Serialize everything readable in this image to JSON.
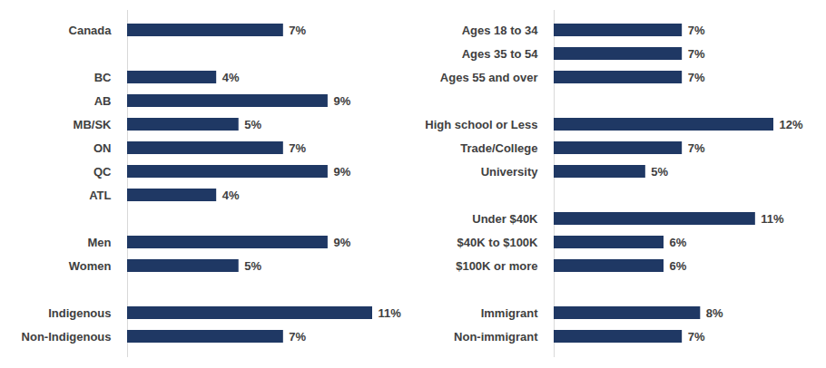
{
  "chart_data": [
    {
      "type": "bar",
      "orientation": "horizontal",
      "data_labels": true,
      "tick_labels": "y",
      "color": "#1f3864",
      "categories": [
        "Canada",
        null,
        "BC",
        "AB",
        "MB/SK",
        "ON",
        "QC",
        "ATL",
        null,
        "Men",
        "Women",
        null,
        "Indigenous",
        "Non-Indigenous"
      ],
      "values": [
        7,
        null,
        4,
        9,
        5,
        7,
        9,
        4,
        null,
        9,
        5,
        null,
        11,
        7
      ],
      "value_labels": [
        "7%",
        null,
        "4%",
        "9%",
        "5%",
        "7%",
        "9%",
        "4%",
        null,
        "9%",
        "5%",
        null,
        "11%",
        "7%"
      ]
    },
    {
      "type": "bar",
      "orientation": "horizontal",
      "data_labels": true,
      "tick_labels": "y",
      "color": "#1f3864",
      "categories": [
        "Ages 18 to 34",
        "Ages 35 to 54",
        "Ages 55 and over",
        null,
        "High school or Less",
        "Trade/College",
        "University",
        null,
        "Under $40K",
        "$40K to $100K",
        "$100K or more",
        null,
        "Immigrant",
        "Non-immigrant"
      ],
      "values": [
        7,
        7,
        7,
        null,
        12,
        7,
        5,
        null,
        11,
        6,
        6,
        null,
        8,
        7
      ],
      "value_labels": [
        "7%",
        "7%",
        "7%",
        null,
        "12%",
        "7%",
        "5%",
        null,
        "11%",
        "6%",
        "6%",
        null,
        "8%",
        "7%"
      ]
    }
  ]
}
